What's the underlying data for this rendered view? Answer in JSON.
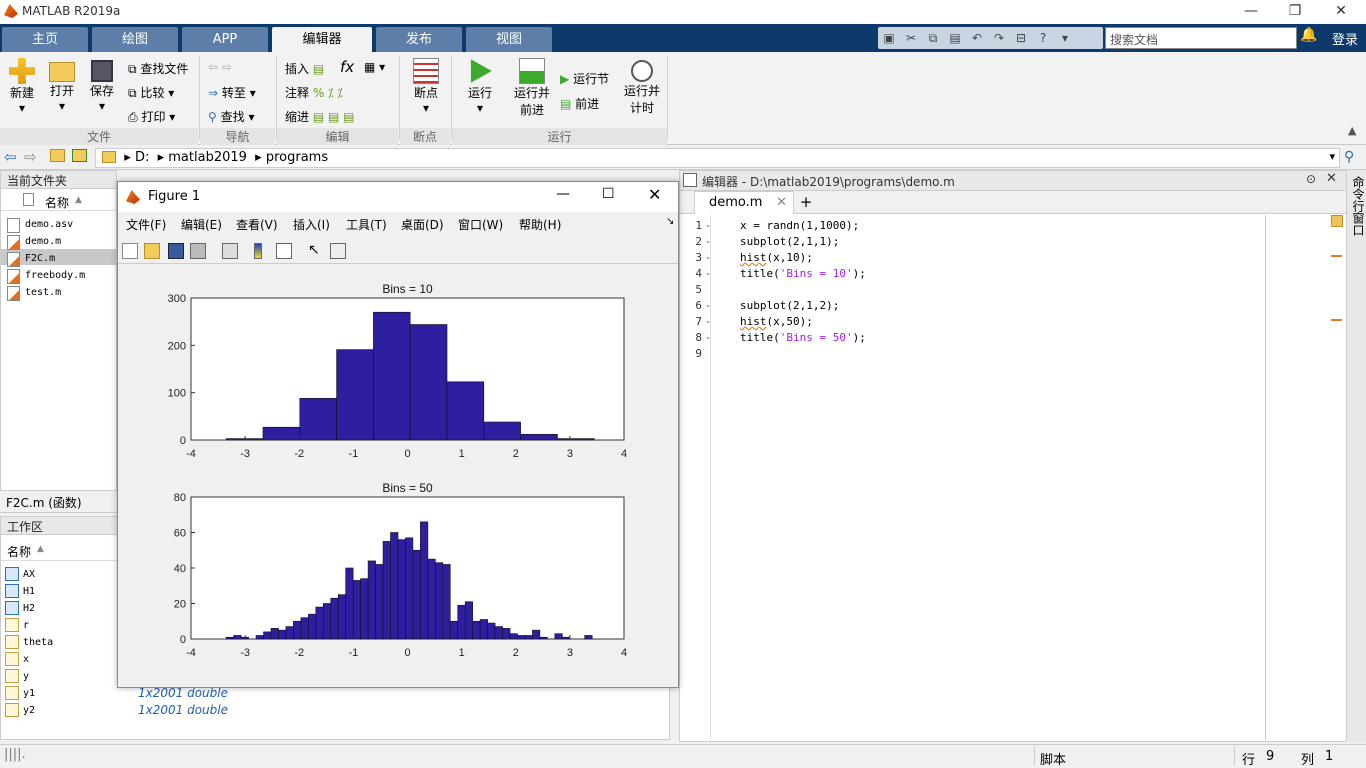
{
  "app": {
    "title": "MATLAB R2019a"
  },
  "ribbon_tabs": [
    "主页",
    "绘图",
    "APP",
    "编辑器",
    "发布",
    "视图"
  ],
  "active_tab": "编辑器",
  "search": {
    "placeholder": "搜索文档"
  },
  "login_label": "登录",
  "ribbon": {
    "file": {
      "new": "新建",
      "open": "打开",
      "save": "保存",
      "find_files": "查找文件",
      "compare": "比较",
      "print": "打印",
      "group": "文件"
    },
    "navigate": {
      "goto": "转至",
      "find": "查找",
      "group": "导航"
    },
    "edit": {
      "insert": "插入",
      "comment": "注释",
      "indent": "缩进",
      "fx": "fx",
      "group": "编辑"
    },
    "breakpoints": {
      "label": "断点",
      "group": "断点"
    },
    "run": {
      "run": "运行",
      "run_advance_1": "运行并",
      "run_advance_2": "前进",
      "run_section": "运行节",
      "advance": "前进",
      "run_time_1": "运行并",
      "run_time_2": "计时",
      "group": "运行"
    }
  },
  "address": {
    "drive": "D:",
    "folder1": "matlab2019",
    "folder2": "programs"
  },
  "current_folder": {
    "title": "当前文件夹",
    "col_name": "名称",
    "files": [
      "demo.asv",
      "demo.m",
      "F2C.m",
      "freebody.m",
      "test.m"
    ],
    "selected": "F2C.m",
    "details": "F2C.m  (函数)"
  },
  "workspace": {
    "title": "工作区",
    "col_name": "名称",
    "vars": [
      "AX",
      "H1",
      "H2",
      "r",
      "theta",
      "x",
      "y",
      "y1",
      "y2"
    ],
    "values": {
      "y1": "1x2001 double",
      "y2": "1x2001 double"
    }
  },
  "figure": {
    "title": "Figure 1",
    "menu": [
      "文件(F)",
      "编辑(E)",
      "查看(V)",
      "插入(I)",
      "工具(T)",
      "桌面(D)",
      "窗口(W)",
      "帮助(H)"
    ]
  },
  "editor": {
    "header": "编辑器 - D:\\matlab2019\\programs\\demo.m",
    "tab": "demo.m",
    "lines": [
      {
        "n": "1",
        "dash": "-",
        "code": "x = randn(1,1000);"
      },
      {
        "n": "2",
        "dash": "-",
        "code": "subplot(2,1,1);"
      },
      {
        "n": "3",
        "dash": "-",
        "pre": "hist",
        "code": "(x,10);"
      },
      {
        "n": "4",
        "dash": "-",
        "code": "title(",
        "str": "'Bins = 10'",
        "post": ");"
      },
      {
        "n": "5",
        "dash": "",
        "code": ""
      },
      {
        "n": "6",
        "dash": "-",
        "code": "subplot(2,1,2);"
      },
      {
        "n": "7",
        "dash": "-",
        "pre": "hist",
        "code": "(x,50);"
      },
      {
        "n": "8",
        "dash": "-",
        "code": "title(",
        "str": "'Bins = 50'",
        "post": ");"
      },
      {
        "n": "9",
        "dash": "",
        "code": ""
      }
    ]
  },
  "command_window_label": "命令行窗口",
  "status": {
    "mode": "脚本",
    "row_label": "行",
    "row": "9",
    "col_label": "列",
    "col": "1"
  },
  "chart_data": [
    {
      "type": "bar",
      "title": "Bins = 10",
      "xlim": [
        -4,
        4
      ],
      "ylim": [
        0,
        300
      ],
      "xticks": [
        -4,
        -3,
        -2,
        -1,
        0,
        1,
        2,
        3,
        4
      ],
      "yticks": [
        0,
        100,
        200,
        300
      ],
      "bin_start": -3.35,
      "bin_width": 0.68,
      "values": [
        3,
        27,
        88,
        191,
        270,
        244,
        123,
        38,
        12,
        3
      ],
      "color": "#2e1fa0"
    },
    {
      "type": "bar",
      "title": "Bins = 50",
      "xlim": [
        -4,
        4
      ],
      "ylim": [
        0,
        80
      ],
      "xticks": [
        -4,
        -3,
        -2,
        -1,
        0,
        1,
        2,
        3,
        4
      ],
      "yticks": [
        0,
        20,
        40,
        60,
        80
      ],
      "bin_start": -3.35,
      "bin_width": 0.138,
      "values": [
        1,
        2,
        1,
        0,
        2,
        4,
        6,
        5,
        7,
        10,
        12,
        14,
        18,
        20,
        23,
        25,
        40,
        33,
        34,
        44,
        42,
        55,
        60,
        56,
        57,
        50,
        66,
        45,
        43,
        42,
        10,
        19,
        21,
        10,
        11,
        9,
        7,
        6,
        3,
        2,
        2,
        5,
        1,
        0,
        3,
        1,
        0,
        0,
        2,
        0
      ],
      "color": "#2e1fa0"
    }
  ]
}
